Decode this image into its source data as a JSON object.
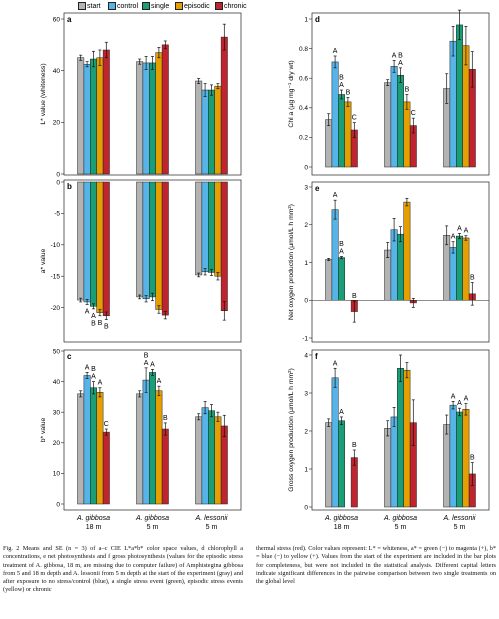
{
  "legend": [
    {
      "key": "start",
      "label": "start",
      "color": "#b3b3b3"
    },
    {
      "key": "control",
      "label": "control",
      "color": "#56b4e9"
    },
    {
      "key": "single",
      "label": "single",
      "color": "#1a9e77"
    },
    {
      "key": "episodic",
      "label": "episodic",
      "color": "#e69f00"
    },
    {
      "key": "chronic",
      "label": "chronic",
      "color": "#c0242e"
    }
  ],
  "groups": [
    {
      "line1": "A. gibbosa",
      "line2": "18 m"
    },
    {
      "line1": "A. gibbosa",
      "line2": "5 m"
    },
    {
      "line1": "A. lessonii",
      "line2": "5 m"
    }
  ],
  "chart_data": [
    {
      "id": "a",
      "panel": "a",
      "type": "bar",
      "ylabel": "L* value (whiteness)",
      "ylim": [
        0,
        60
      ],
      "ticks": [
        0,
        20,
        40,
        60
      ],
      "categories": [
        "A. gibbosa 18 m",
        "A. gibbosa 5 m",
        "A. lessonii 5 m"
      ],
      "series": [
        {
          "key": "start",
          "values": [
            45,
            43.5,
            36
          ],
          "errors": [
            1,
            1,
            1
          ]
        },
        {
          "key": "control",
          "values": [
            42.5,
            43,
            32.5
          ],
          "errors": [
            1,
            2.5,
            2.5
          ]
        },
        {
          "key": "single",
          "values": [
            44.5,
            43,
            32.5
          ],
          "errors": [
            3,
            2.5,
            2
          ]
        },
        {
          "key": "episodic",
          "values": [
            45,
            47,
            34
          ],
          "errors": [
            3,
            2,
            1
          ]
        },
        {
          "key": "chronic",
          "values": [
            48,
            50,
            53
          ],
          "errors": [
            3,
            1.5,
            5
          ]
        }
      ],
      "letters": []
    },
    {
      "id": "b",
      "panel": "b",
      "type": "bar",
      "ylabel": "a* value",
      "ylim": [
        -25,
        0
      ],
      "ticks": [
        -20,
        -15,
        -10,
        -5,
        0
      ],
      "categories": [
        "A. gibbosa 18 m",
        "A. gibbosa 5 m",
        "A. lessonii 5 m"
      ],
      "series": [
        {
          "key": "start",
          "values": [
            -18.8,
            -18.3,
            -14.8
          ],
          "errors": [
            0.3,
            0.3,
            0.3
          ]
        },
        {
          "key": "control",
          "values": [
            -19.1,
            -18.6,
            -14.3
          ],
          "errors": [
            0.4,
            0.5,
            0.5
          ]
        },
        {
          "key": "single",
          "values": [
            -19.8,
            -18.3,
            -14.4
          ],
          "errors": [
            0.4,
            0.6,
            0.5
          ]
        },
        {
          "key": "episodic",
          "values": [
            -20.8,
            -20.3,
            -15.0
          ],
          "errors": [
            0.5,
            0.6,
            0.6
          ]
        },
        {
          "key": "chronic",
          "values": [
            -21.3,
            -21.2,
            -20.5
          ],
          "errors": [
            0.6,
            0.6,
            1.5
          ]
        }
      ],
      "letters": [
        {
          "group": 0,
          "series": 1,
          "text": "A"
        },
        {
          "group": 0,
          "series": 2,
          "text": "A"
        },
        {
          "group": 0,
          "series": 2,
          "text": "B"
        },
        {
          "group": 0,
          "series": 3,
          "text": "B"
        },
        {
          "group": 0,
          "series": 4,
          "text": "B"
        }
      ]
    },
    {
      "id": "c",
      "panel": "c",
      "type": "bar",
      "ylabel": "b* value",
      "ylim": [
        0,
        50
      ],
      "ticks": [
        0,
        10,
        20,
        30,
        40,
        50
      ],
      "categories": [
        "A. gibbosa 18 m",
        "A. gibbosa 5 m",
        "A. lessonii 5 m"
      ],
      "series": [
        {
          "key": "start",
          "values": [
            36,
            36,
            28.5
          ],
          "errors": [
            1,
            1,
            1
          ]
        },
        {
          "key": "control",
          "values": [
            42,
            40.5,
            31.5
          ],
          "errors": [
            1,
            4,
            2
          ]
        },
        {
          "key": "single",
          "values": [
            38,
            43,
            30.5
          ],
          "errors": [
            2,
            1,
            2
          ]
        },
        {
          "key": "episodic",
          "values": [
            36.5,
            37,
            28.5
          ],
          "errors": [
            1.5,
            1.5,
            1.5
          ]
        },
        {
          "key": "chronic",
          "values": [
            23.5,
            24.5,
            25.5
          ],
          "errors": [
            1,
            2,
            3.5
          ]
        }
      ],
      "letters": [
        {
          "group": 0,
          "series": 1,
          "text": "A"
        },
        {
          "group": 0,
          "series": 2,
          "text": "A"
        },
        {
          "group": 0,
          "series": 2,
          "text": "B"
        },
        {
          "group": 0,
          "series": 3,
          "text": "A"
        },
        {
          "group": 0,
          "series": 4,
          "text": "C"
        },
        {
          "group": 1,
          "series": 1,
          "text": "A"
        },
        {
          "group": 1,
          "series": 1,
          "text": "B"
        },
        {
          "group": 1,
          "series": 2,
          "text": "A"
        },
        {
          "group": 1,
          "series": 3,
          "text": "A"
        },
        {
          "group": 1,
          "series": 4,
          "text": "B"
        }
      ]
    },
    {
      "id": "d",
      "panel": "d",
      "type": "bar",
      "ylabel": "Chl a (µg mg⁻¹ dry wt)",
      "ylim": [
        0,
        1.0
      ],
      "ticks": [
        0,
        0.2,
        0.4,
        0.6,
        0.8,
        1.0
      ],
      "categories": [
        "A. gibbosa 18 m",
        "A. gibbosa 5 m",
        "A. lessonii 5 m"
      ],
      "series": [
        {
          "key": "start",
          "values": [
            0.32,
            0.57,
            0.53
          ],
          "errors": [
            0.04,
            0.02,
            0.1
          ]
        },
        {
          "key": "control",
          "values": [
            0.71,
            0.68,
            0.85
          ],
          "errors": [
            0.04,
            0.04,
            0.1
          ]
        },
        {
          "key": "single",
          "values": [
            0.49,
            0.62,
            0.96
          ],
          "errors": [
            0.03,
            0.05,
            0.1
          ]
        },
        {
          "key": "episodic",
          "values": [
            0.44,
            0.44,
            0.82
          ],
          "errors": [
            0.03,
            0.05,
            0.13
          ]
        },
        {
          "key": "chronic",
          "values": [
            0.25,
            0.28,
            0.66
          ],
          "errors": [
            0.05,
            0.05,
            0.12
          ]
        }
      ],
      "letters": [
        {
          "group": 0,
          "series": 1,
          "text": "A"
        },
        {
          "group": 0,
          "series": 2,
          "text": "A"
        },
        {
          "group": 0,
          "series": 2,
          "text": "B"
        },
        {
          "group": 0,
          "series": 3,
          "text": "B"
        },
        {
          "group": 0,
          "series": 4,
          "text": "C"
        },
        {
          "group": 1,
          "series": 1,
          "text": "A"
        },
        {
          "group": 1,
          "series": 2,
          "text": "A"
        },
        {
          "group": 1,
          "series": 2,
          "text": "B"
        },
        {
          "group": 1,
          "series": 3,
          "text": "B"
        },
        {
          "group": 1,
          "series": 4,
          "text": "C"
        }
      ]
    },
    {
      "id": "e",
      "panel": "e",
      "type": "bar",
      "ylabel": "Net oxygen production (µmol/L h mm²)",
      "ylim": [
        -1,
        3
      ],
      "ticks": [
        -1,
        0,
        1,
        2,
        3
      ],
      "categories": [
        "A. gibbosa 18 m",
        "A. gibbosa 5 m",
        "A. lessonii 5 m"
      ],
      "series": [
        {
          "key": "start",
          "values": [
            1.08,
            1.33,
            1.72
          ],
          "errors": [
            0.03,
            0.2,
            0.25
          ]
        },
        {
          "key": "control",
          "values": [
            2.4,
            1.87,
            1.4
          ],
          "errors": [
            0.25,
            0.3,
            0.15
          ]
        },
        {
          "key": "single",
          "values": [
            1.13,
            1.75,
            1.7
          ],
          "errors": [
            0.03,
            0.2,
            0.07
          ]
        },
        {
          "key": "episodic",
          "values": [
            null,
            2.6,
            1.65
          ],
          "errors": [
            0,
            0.1,
            0.06
          ]
        },
        {
          "key": "chronic",
          "values": [
            -0.3,
            -0.07,
            0.17
          ],
          "errors": [
            0.28,
            0.12,
            0.3
          ]
        }
      ],
      "letters": [
        {
          "group": 0,
          "series": 1,
          "text": "A"
        },
        {
          "group": 0,
          "series": 2,
          "text": "A"
        },
        {
          "group": 0,
          "series": 2,
          "text": "B"
        },
        {
          "group": 0,
          "series": 4,
          "text": "B"
        },
        {
          "group": 2,
          "series": 1,
          "text": "A"
        },
        {
          "group": 2,
          "series": 2,
          "text": "A"
        },
        {
          "group": 2,
          "series": 3,
          "text": "A"
        },
        {
          "group": 2,
          "series": 4,
          "text": "B"
        }
      ]
    },
    {
      "id": "f",
      "panel": "f",
      "type": "bar",
      "ylabel": "Gross oxygen production (µmol/L h mm²)",
      "ylim": [
        0,
        4
      ],
      "ticks": [
        0,
        1,
        2,
        3,
        4
      ],
      "categories": [
        "A. gibbosa 18 m",
        "A. gibbosa 5 m",
        "A. lessonii 5 m"
      ],
      "series": [
        {
          "key": "start",
          "values": [
            2.22,
            2.07,
            2.17
          ],
          "errors": [
            0.1,
            0.2,
            0.25
          ]
        },
        {
          "key": "control",
          "values": [
            3.4,
            2.37,
            2.68
          ],
          "errors": [
            0.25,
            0.25,
            0.1
          ]
        },
        {
          "key": "single",
          "values": [
            2.27,
            3.65,
            2.5
          ],
          "errors": [
            0.1,
            0.35,
            0.1
          ]
        },
        {
          "key": "episodic",
          "values": [
            null,
            3.6,
            2.57
          ],
          "errors": [
            0,
            0.2,
            0.15
          ]
        },
        {
          "key": "chronic",
          "values": [
            1.3,
            2.22,
            0.87
          ],
          "errors": [
            0.2,
            0.6,
            0.3
          ]
        }
      ],
      "letters": [
        {
          "group": 0,
          "series": 1,
          "text": "A"
        },
        {
          "group": 0,
          "series": 2,
          "text": "A"
        },
        {
          "group": 0,
          "series": 4,
          "text": "B"
        },
        {
          "group": 2,
          "series": 1,
          "text": "A"
        },
        {
          "group": 2,
          "series": 2,
          "text": "A"
        },
        {
          "group": 2,
          "series": 3,
          "text": "A"
        },
        {
          "group": 2,
          "series": 4,
          "text": "B"
        }
      ]
    }
  ],
  "caption": {
    "left": "Fig. 2 Means and SE (n = 3) of a–c CIE L*a*b* color space values, d chlorophyll a concentrations, e net photosynthesis and f gross photosynthesis (values for the episodic stress treatment of A. gibbosa, 18 m, are missing due to computer failure) of Amphistegina gibbosa from 5 and 18 m depth and A. lessonii from 5 m depth at the start of the experiment (gray) and after exposure to no stress/control (blue), a single stress event (green), episodic stress events (yellow) or chronic",
    "right": "thermal stress (red). Color values represent: L* = whiteness, a* = green (−) to magenta (+), b* = blue (−) to yellow (+). Values from the start of the experiment are included in the bar plots for completeness, but were not included in the statistical analysis. Different capital letters indicate significant differences in the pairwise comparison between two single treatments on the global level"
  }
}
